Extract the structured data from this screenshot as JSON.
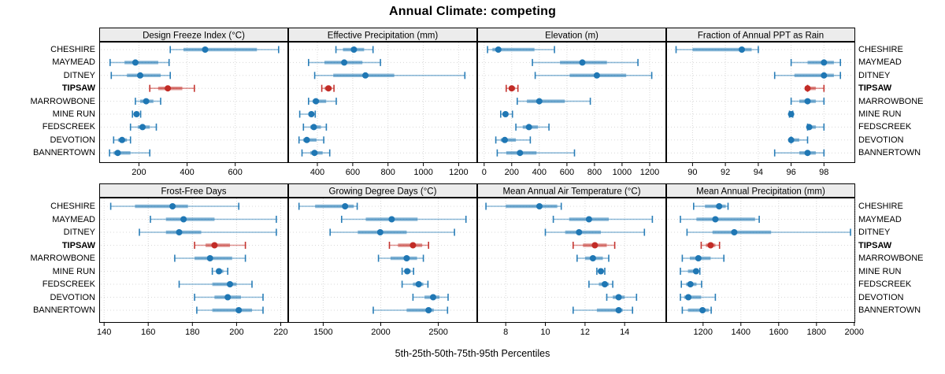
{
  "title": "Annual Climate: competing",
  "footer": "5th-25th-50th-75th-95th Percentiles",
  "percentile_labels": [
    "5th",
    "25th",
    "50th",
    "75th",
    "95th"
  ],
  "sites": [
    "CHESHIRE",
    "MAYMEAD",
    "DITNEY",
    "TIPSAW",
    "MARROWBONE",
    "MINE RUN",
    "FEDSCREEK",
    "DEVOTION",
    "BANNERTOWN"
  ],
  "highlight_site": "TIPSAW",
  "colors": {
    "series": "#1F77B4",
    "highlight": "#C22B26",
    "grid": "#D8D8D8",
    "strip_bg": "#ECECEC",
    "border": "#000000",
    "background": "#FFFFFF"
  },
  "chart_data": [
    {
      "type": "dot-whisker",
      "title": "Design Freeze Index (°C)",
      "xlim": [
        35,
        820
      ],
      "ticks": [
        200,
        400,
        600
      ],
      "values": [
        [
          330,
          385,
          475,
          690,
          780
        ],
        [
          80,
          140,
          185,
          280,
          325
        ],
        [
          85,
          150,
          205,
          290,
          330
        ],
        [
          245,
          280,
          320,
          380,
          430
        ],
        [
          185,
          205,
          230,
          260,
          290
        ],
        [
          173,
          183,
          190,
          198,
          207
        ],
        [
          165,
          195,
          215,
          245,
          272
        ],
        [
          95,
          113,
          130,
          150,
          165
        ],
        [
          78,
          95,
          112,
          165,
          245
        ]
      ]
    },
    {
      "type": "dot-whisker",
      "title": "Effective Precipitation (mm)",
      "xlim": [
        235,
        1305
      ],
      "ticks": [
        400,
        600,
        800,
        1000,
        1200
      ],
      "values": [
        [
          505,
          545,
          607,
          665,
          715
        ],
        [
          350,
          440,
          552,
          655,
          757
        ],
        [
          385,
          490,
          672,
          835,
          1235
        ],
        [
          425,
          442,
          463,
          481,
          494
        ],
        [
          350,
          373,
          392,
          450,
          507
        ],
        [
          300,
          350,
          366,
          378,
          388
        ],
        [
          321,
          360,
          380,
          420,
          451
        ],
        [
          296,
          320,
          340,
          395,
          436
        ],
        [
          313,
          360,
          384,
          430,
          470
        ]
      ]
    },
    {
      "type": "dot-whisker",
      "title": "Elevation (m)",
      "xlim": [
        -50,
        1320
      ],
      "ticks": [
        0,
        200,
        400,
        600,
        800,
        1000,
        1200
      ],
      "values": [
        [
          25,
          60,
          103,
          365,
          510
        ],
        [
          350,
          550,
          712,
          890,
          1115
        ],
        [
          370,
          620,
          817,
          1030,
          1215
        ],
        [
          160,
          180,
          200,
          225,
          245
        ],
        [
          240,
          310,
          400,
          585,
          770
        ],
        [
          120,
          140,
          155,
          175,
          205
        ],
        [
          230,
          280,
          325,
          390,
          470
        ],
        [
          85,
          120,
          150,
          230,
          335
        ],
        [
          95,
          160,
          260,
          380,
          655
        ]
      ]
    },
    {
      "type": "dot-whisker",
      "title": "Fraction of Annual PPT as Rain",
      "xlim": [
        88.4,
        99.9
      ],
      "ticks": [
        90,
        92,
        94,
        96,
        98
      ],
      "values": [
        [
          89,
          90,
          93,
          93.6,
          94
        ],
        [
          96,
          97,
          98,
          98.6,
          99
        ],
        [
          95,
          96.2,
          98,
          98.6,
          99
        ],
        [
          97,
          97,
          97,
          97.5,
          98
        ],
        [
          96,
          96.5,
          97,
          97.5,
          98
        ],
        [
          95.9,
          96,
          96,
          96,
          96.1
        ],
        [
          97,
          97,
          97.1,
          97.5,
          98
        ],
        [
          96,
          96,
          96,
          96.5,
          97
        ],
        [
          95,
          96.5,
          97,
          97.5,
          98
        ]
      ]
    },
    {
      "type": "dot-whisker",
      "title": "Frost-Free Days",
      "xlim": [
        137.8,
        223.4
      ],
      "ticks": [
        140,
        160,
        180,
        200,
        220
      ],
      "values": [
        [
          143,
          154,
          171,
          178,
          201
        ],
        [
          161,
          168,
          176,
          190,
          218
        ],
        [
          156,
          168,
          174,
          184,
          218
        ],
        [
          181,
          186,
          190,
          197,
          204
        ],
        [
          172,
          181,
          188,
          198,
          204
        ],
        [
          189,
          191,
          192,
          194,
          196
        ],
        [
          174,
          189,
          197,
          200,
          207
        ],
        [
          181,
          190,
          196,
          202,
          212
        ],
        [
          182,
          189,
          201,
          207,
          212
        ]
      ]
    },
    {
      "type": "dot-whisker",
      "title": "Growing Degree Days (°C)",
      "xlim": [
        1196,
        2838
      ],
      "ticks": [
        1500,
        2000,
        2500
      ],
      "values": [
        [
          1290,
          1430,
          1690,
          1765,
          1795
        ],
        [
          1660,
          1870,
          2095,
          2320,
          2740
        ],
        [
          1560,
          1800,
          1995,
          2225,
          2640
        ],
        [
          2075,
          2150,
          2280,
          2360,
          2415
        ],
        [
          1980,
          2085,
          2225,
          2315,
          2370
        ],
        [
          2185,
          2215,
          2230,
          2260,
          2285
        ],
        [
          2185,
          2280,
          2330,
          2370,
          2410
        ],
        [
          2280,
          2380,
          2455,
          2510,
          2585
        ],
        [
          1935,
          2225,
          2415,
          2460,
          2580
        ]
      ]
    },
    {
      "type": "dot-whisker",
      "title": "Mean Annual Air Temperature (°C)",
      "xlim": [
        6.56,
        16.1
      ],
      "ticks": [
        8,
        10,
        12,
        14
      ],
      "values": [
        [
          7.0,
          8.0,
          9.7,
          10.6,
          10.8
        ],
        [
          10.4,
          11.2,
          12.2,
          13.2,
          15.4
        ],
        [
          10.0,
          11.0,
          11.7,
          12.8,
          15.0
        ],
        [
          11.4,
          11.9,
          12.5,
          13.1,
          13.5
        ],
        [
          11.6,
          12.0,
          12.4,
          12.9,
          13.2
        ],
        [
          12.6,
          12.7,
          12.8,
          12.9,
          13.0
        ],
        [
          12.2,
          12.7,
          13.0,
          13.2,
          13.4
        ],
        [
          13.1,
          13.4,
          13.7,
          14.0,
          14.6
        ],
        [
          11.4,
          12.6,
          13.7,
          13.9,
          14.4
        ]
      ]
    },
    {
      "type": "dot-whisker",
      "title": "Mean Annual Precipitation (mm)",
      "xlim": [
        1005,
        2005
      ],
      "ticks": [
        1200,
        1400,
        1600,
        1800,
        2000
      ],
      "values": [
        [
          1150,
          1210,
          1285,
          1320,
          1332
        ],
        [
          1080,
          1165,
          1265,
          1475,
          1497
        ],
        [
          1115,
          1250,
          1365,
          1560,
          1980
        ],
        [
          1190,
          1215,
          1240,
          1265,
          1287
        ],
        [
          1090,
          1130,
          1175,
          1240,
          1310
        ],
        [
          1080,
          1120,
          1163,
          1175,
          1183
        ],
        [
          1085,
          1110,
          1133,
          1165,
          1192
        ],
        [
          1080,
          1100,
          1122,
          1190,
          1265
        ],
        [
          1090,
          1120,
          1197,
          1230,
          1243
        ]
      ]
    }
  ]
}
